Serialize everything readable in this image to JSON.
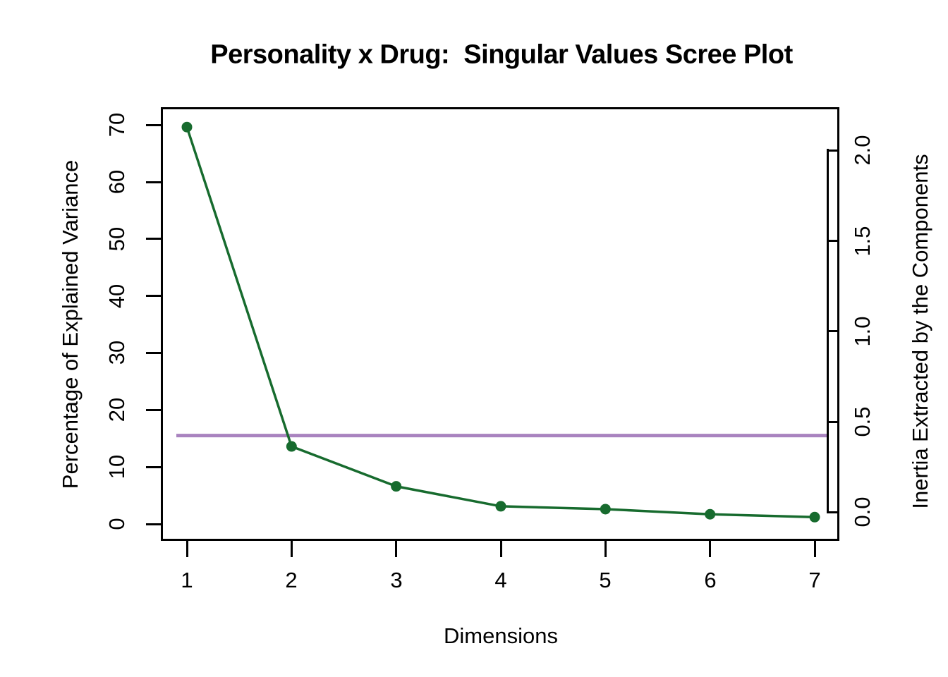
{
  "title": "Personality x Drug:  Singular Values Scree Plot",
  "x_axis": {
    "label": "Dimensions",
    "tick_labels": [
      "1",
      "2",
      "3",
      "4",
      "5",
      "6",
      "7"
    ]
  },
  "y_axis_left": {
    "label": "Percentage of Explained Variance",
    "tick_labels": [
      "0",
      "10",
      "20",
      "30",
      "40",
      "50",
      "60",
      "70"
    ]
  },
  "y_axis_right": {
    "label": "Inertia Extracted by the Components",
    "tick_labels": [
      "0.0",
      "0.5",
      "1.0",
      "1.5",
      "2.0"
    ]
  },
  "chart_data": {
    "type": "line",
    "title": "Personality x Drug:  Singular Values Scree Plot",
    "xlabel": "Dimensions",
    "ylabel": "Percentage of Explained Variance",
    "ylabel_right": "Inertia Extracted by the Components",
    "x": [
      1,
      2,
      3,
      4,
      5,
      6,
      7
    ],
    "series": [
      {
        "name": "Percentage of Explained Variance",
        "values": [
          69.6,
          13.6,
          6.6,
          3.1,
          2.6,
          1.7,
          1.2
        ]
      }
    ],
    "threshold_line_percent": 15.5,
    "ylim_left": [
      0,
      70
    ],
    "left_axis_ticks": [
      0,
      10,
      20,
      30,
      40,
      50,
      60,
      70
    ],
    "right_axis_ticks": [
      0.0,
      0.5,
      1.0,
      1.5,
      2.0
    ],
    "x_ticks": [
      1,
      2,
      3,
      4,
      5,
      6,
      7
    ],
    "grid": false,
    "legend": "none",
    "marker": "filled-circle",
    "line_color": "#176B2E",
    "marker_color": "#176B2E",
    "threshold_color": "#A983BF",
    "axis_color": "#000000"
  }
}
